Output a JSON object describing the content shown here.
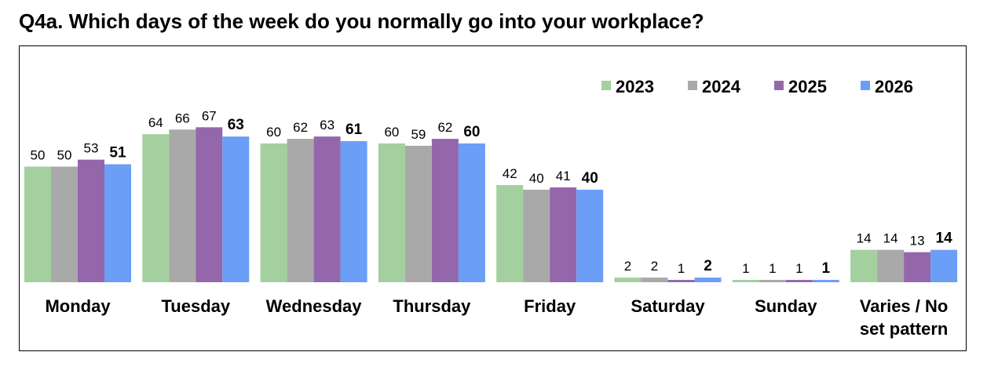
{
  "title": "Q4a.  Which days of the week do you normally go into your workplace?",
  "chart_data": {
    "type": "bar",
    "categories": [
      "Monday",
      "Tuesday",
      "Wednesday",
      "Thursday",
      "Friday",
      "Saturday",
      "Sunday",
      "Varies / No set pattern"
    ],
    "category_lines": [
      [
        "Monday"
      ],
      [
        "Tuesday"
      ],
      [
        "Wednesday"
      ],
      [
        "Thursday"
      ],
      [
        "Friday"
      ],
      [
        "Saturday"
      ],
      [
        "Sunday"
      ],
      [
        "Varies / No",
        "set pattern"
      ]
    ],
    "series": [
      {
        "name": "2023",
        "color": "#a4cf9f",
        "values": [
          50,
          64,
          60,
          60,
          42,
          2,
          1,
          14
        ]
      },
      {
        "name": "2024",
        "color": "#a9a9a9",
        "values": [
          50,
          66,
          62,
          59,
          40,
          2,
          1,
          14
        ]
      },
      {
        "name": "2025",
        "color": "#9467ab",
        "values": [
          53,
          67,
          63,
          62,
          41,
          1,
          1,
          13
        ]
      },
      {
        "name": "2026",
        "color": "#6a9ef7",
        "values": [
          51,
          63,
          61,
          60,
          40,
          2,
          1,
          14
        ]
      }
    ],
    "bold_series": "2026",
    "legend_position": "top-right",
    "grid": false,
    "ylim": [
      0,
      100
    ]
  }
}
